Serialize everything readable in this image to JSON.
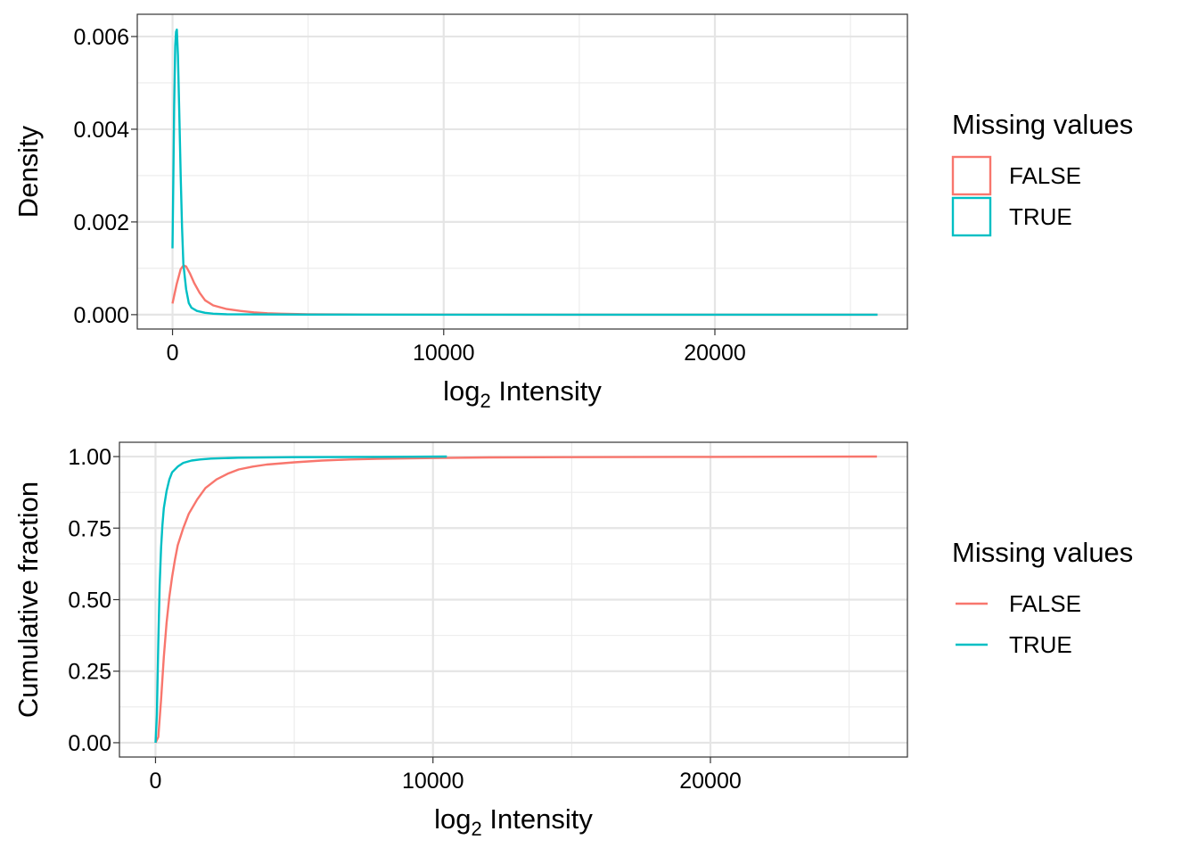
{
  "chart_data": [
    {
      "type": "line",
      "title": "",
      "xlabel_main": "log",
      "xlabel_sub": "2",
      "xlabel_rest": " Intensity",
      "ylabel": "Density",
      "xlim": [
        -1300,
        27100
      ],
      "ylim": [
        -0.00031,
        0.00648
      ],
      "x_ticks": [
        0,
        10000,
        20000
      ],
      "x_tick_labels": [
        "0",
        "10000",
        "20000"
      ],
      "y_ticks": [
        0,
        0.002,
        0.004,
        0.006
      ],
      "y_tick_labels": [
        "0.000",
        "0.002",
        "0.004",
        "0.006"
      ],
      "grid": true,
      "legend": {
        "title": "Missing values",
        "placement": "right",
        "key_style": "box",
        "entries": [
          "FALSE",
          "TRUE"
        ]
      },
      "series": [
        {
          "name": "FALSE",
          "color": "#F8766D",
          "x": [
            0,
            150,
            300,
            400,
            500,
            650,
            800,
            1000,
            1200,
            1500,
            2000,
            2500,
            3000,
            3500,
            4000,
            5000,
            6000,
            8000,
            10000,
            15000,
            20000,
            26000
          ],
          "y": [
            0.00024,
            0.00065,
            0.00098,
            0.00106,
            0.00104,
            0.00088,
            0.00068,
            0.00047,
            0.00031,
            0.0002,
            0.00012,
            8e-05,
            5e-05,
            3e-05,
            2e-05,
            1e-05,
            5e-06,
            2e-06,
            1e-06,
            0,
            0,
            0
          ]
        },
        {
          "name": "TRUE",
          "color": "#00BFC4",
          "x": [
            0,
            30,
            60,
            100,
            130,
            160,
            200,
            250,
            300,
            350,
            400,
            500,
            600,
            700,
            900,
            1200,
            1500,
            2000,
            3000,
            5000,
            10000,
            15000,
            20000,
            26000
          ],
          "y": [
            0.00143,
            0.003,
            0.0045,
            0.0058,
            0.0061,
            0.00615,
            0.0056,
            0.0043,
            0.003,
            0.0019,
            0.0011,
            0.00055,
            0.00025,
            0.00015,
            8e-05,
            4e-05,
            2e-05,
            1e-05,
            5e-06,
            1e-06,
            0,
            0,
            0,
            0
          ]
        }
      ]
    },
    {
      "type": "line",
      "title": "",
      "xlabel_main": "log",
      "xlabel_sub": "2",
      "xlabel_rest": " Intensity",
      "ylabel": "Cumulative fraction",
      "xlim": [
        -1300,
        27100
      ],
      "ylim": [
        -0.05,
        1.05
      ],
      "x_ticks": [
        0,
        10000,
        20000
      ],
      "x_tick_labels": [
        "0",
        "10000",
        "20000"
      ],
      "y_ticks": [
        0,
        0.25,
        0.5,
        0.75,
        1
      ],
      "y_tick_labels": [
        "0.00",
        "0.25",
        "0.50",
        "0.75",
        "1.00"
      ],
      "grid": true,
      "legend": {
        "title": "Missing values",
        "placement": "right",
        "key_style": "line",
        "entries": [
          "FALSE",
          "TRUE"
        ]
      },
      "series": [
        {
          "name": "FALSE",
          "color": "#F8766D",
          "x": [
            0,
            100,
            200,
            300,
            400,
            500,
            600,
            700,
            800,
            1000,
            1200,
            1500,
            1800,
            2200,
            2600,
            3000,
            3500,
            4000,
            5000,
            6000,
            7000,
            8000,
            10000,
            12000,
            15000,
            20000,
            26000
          ],
          "y": [
            0,
            0.02,
            0.15,
            0.3,
            0.42,
            0.51,
            0.58,
            0.64,
            0.69,
            0.75,
            0.8,
            0.85,
            0.89,
            0.92,
            0.94,
            0.955,
            0.965,
            0.972,
            0.98,
            0.986,
            0.99,
            0.992,
            0.995,
            0.997,
            0.998,
            0.999,
            1
          ]
        },
        {
          "name": "TRUE",
          "color": "#00BFC4",
          "x": [
            0,
            50,
            100,
            150,
            200,
            250,
            300,
            400,
            500,
            600,
            800,
            1000,
            1300,
            1600,
            2000,
            3000,
            5000,
            8000,
            10500
          ],
          "y": [
            0,
            0.1,
            0.35,
            0.55,
            0.68,
            0.76,
            0.82,
            0.88,
            0.92,
            0.945,
            0.965,
            0.978,
            0.986,
            0.99,
            0.993,
            0.996,
            0.998,
            0.999,
            1
          ]
        }
      ]
    }
  ]
}
